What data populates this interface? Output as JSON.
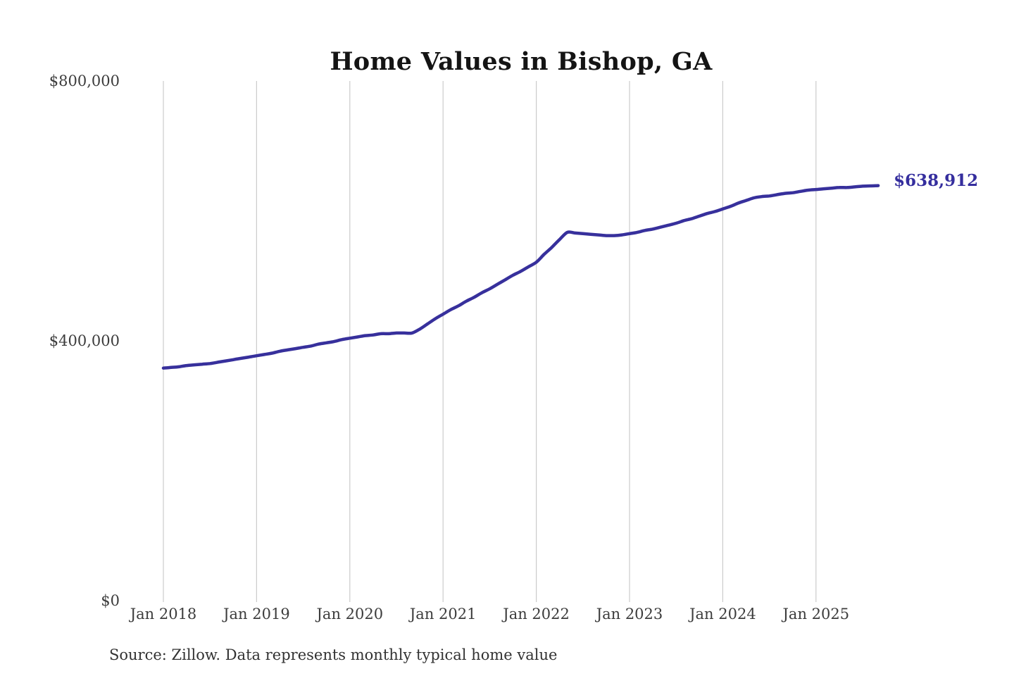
{
  "chart": {
    "title": "Home Values in Bishop, GA",
    "end_label": "$638,912",
    "source_note": "Source: Zillow. Data represents monthly typical home value",
    "colors": {
      "line": "#37309C",
      "end_label_text": "#352E9E",
      "grid": "#CBCBCB",
      "axis_text": "#3C3C3C",
      "title_text": "#141414",
      "background": "#FFFFFF"
    },
    "y_axis": {
      "ticks": [
        {
          "label": "$0",
          "value": 0
        },
        {
          "label": "$400,000",
          "value": 400000
        },
        {
          "label": "$800,000",
          "value": 800000
        }
      ],
      "max": 800000
    },
    "x_axis": {
      "ticks": [
        {
          "label": "Jan 2018",
          "month_index": 0
        },
        {
          "label": "Jan 2019",
          "month_index": 12
        },
        {
          "label": "Jan 2020",
          "month_index": 24
        },
        {
          "label": "Jan 2021",
          "month_index": 36
        },
        {
          "label": "Jan 2022",
          "month_index": 48
        },
        {
          "label": "Jan 2023",
          "month_index": 60
        },
        {
          "label": "Jan 2024",
          "month_index": 72
        },
        {
          "label": "Jan 2025",
          "month_index": 84
        }
      ]
    }
  },
  "chart_data": {
    "type": "line",
    "title": "Home Values in Bishop, GA",
    "xlabel": "",
    "ylabel": "",
    "ylim": [
      0,
      800000
    ],
    "grid": "vertical-only",
    "legend": "none",
    "y_tick_labels": [
      "$0",
      "$400,000",
      "$800,000"
    ],
    "x_tick_labels": [
      "Jan 2018",
      "Jan 2019",
      "Jan 2020",
      "Jan 2021",
      "Jan 2022",
      "Jan 2023",
      "Jan 2024",
      "Jan 2025"
    ],
    "last_point_label": "$638,912",
    "source": "Source: Zillow. Data represents monthly typical home value",
    "series": [
      {
        "name": "Monthly typical home value",
        "x": [
          "2018-01",
          "2018-02",
          "2018-03",
          "2018-04",
          "2018-05",
          "2018-06",
          "2018-07",
          "2018-08",
          "2018-09",
          "2018-10",
          "2018-11",
          "2018-12",
          "2019-01",
          "2019-02",
          "2019-03",
          "2019-04",
          "2019-05",
          "2019-06",
          "2019-07",
          "2019-08",
          "2019-09",
          "2019-10",
          "2019-11",
          "2019-12",
          "2020-01",
          "2020-02",
          "2020-03",
          "2020-04",
          "2020-05",
          "2020-06",
          "2020-07",
          "2020-08",
          "2020-09",
          "2020-10",
          "2020-11",
          "2020-12",
          "2021-01",
          "2021-02",
          "2021-03",
          "2021-04",
          "2021-05",
          "2021-06",
          "2021-07",
          "2021-08",
          "2021-09",
          "2021-10",
          "2021-11",
          "2021-12",
          "2022-01",
          "2022-02",
          "2022-03",
          "2022-04",
          "2022-05",
          "2022-06",
          "2022-07",
          "2022-08",
          "2022-09",
          "2022-10",
          "2022-11",
          "2022-12",
          "2023-01",
          "2023-02",
          "2023-03",
          "2023-04",
          "2023-05",
          "2023-06",
          "2023-07",
          "2023-08",
          "2023-09",
          "2023-10",
          "2023-11",
          "2023-12",
          "2024-01",
          "2024-02",
          "2024-03",
          "2024-04",
          "2024-05",
          "2024-06",
          "2024-07",
          "2024-08",
          "2024-09",
          "2024-10",
          "2024-11",
          "2024-12",
          "2025-01",
          "2025-02",
          "2025-03",
          "2025-04",
          "2025-05",
          "2025-06",
          "2025-07",
          "2025-08",
          "2025-09"
        ],
        "values": [
          358000,
          359000,
          360000,
          362000,
          363000,
          364000,
          365000,
          367000,
          369000,
          371000,
          373000,
          375000,
          377000,
          379000,
          381000,
          384000,
          386000,
          388000,
          390000,
          392000,
          395000,
          397000,
          399000,
          402000,
          404000,
          406000,
          408000,
          409000,
          411000,
          411000,
          412000,
          412000,
          412000,
          418000,
          426000,
          434000,
          441000,
          448000,
          454000,
          461000,
          467000,
          474000,
          480000,
          487000,
          494000,
          501000,
          507000,
          514000,
          521000,
          533000,
          544000,
          556000,
          567000,
          566000,
          565000,
          564000,
          563000,
          562000,
          562000,
          563000,
          565000,
          567000,
          570000,
          572000,
          575000,
          578000,
          581000,
          585000,
          588000,
          592000,
          596000,
          599000,
          603000,
          607000,
          612000,
          616000,
          620000,
          622000,
          623000,
          625000,
          627000,
          628000,
          630000,
          632000,
          633000,
          634000,
          635000,
          636000,
          636000,
          637000,
          638000,
          638500,
          638912
        ]
      }
    ]
  }
}
